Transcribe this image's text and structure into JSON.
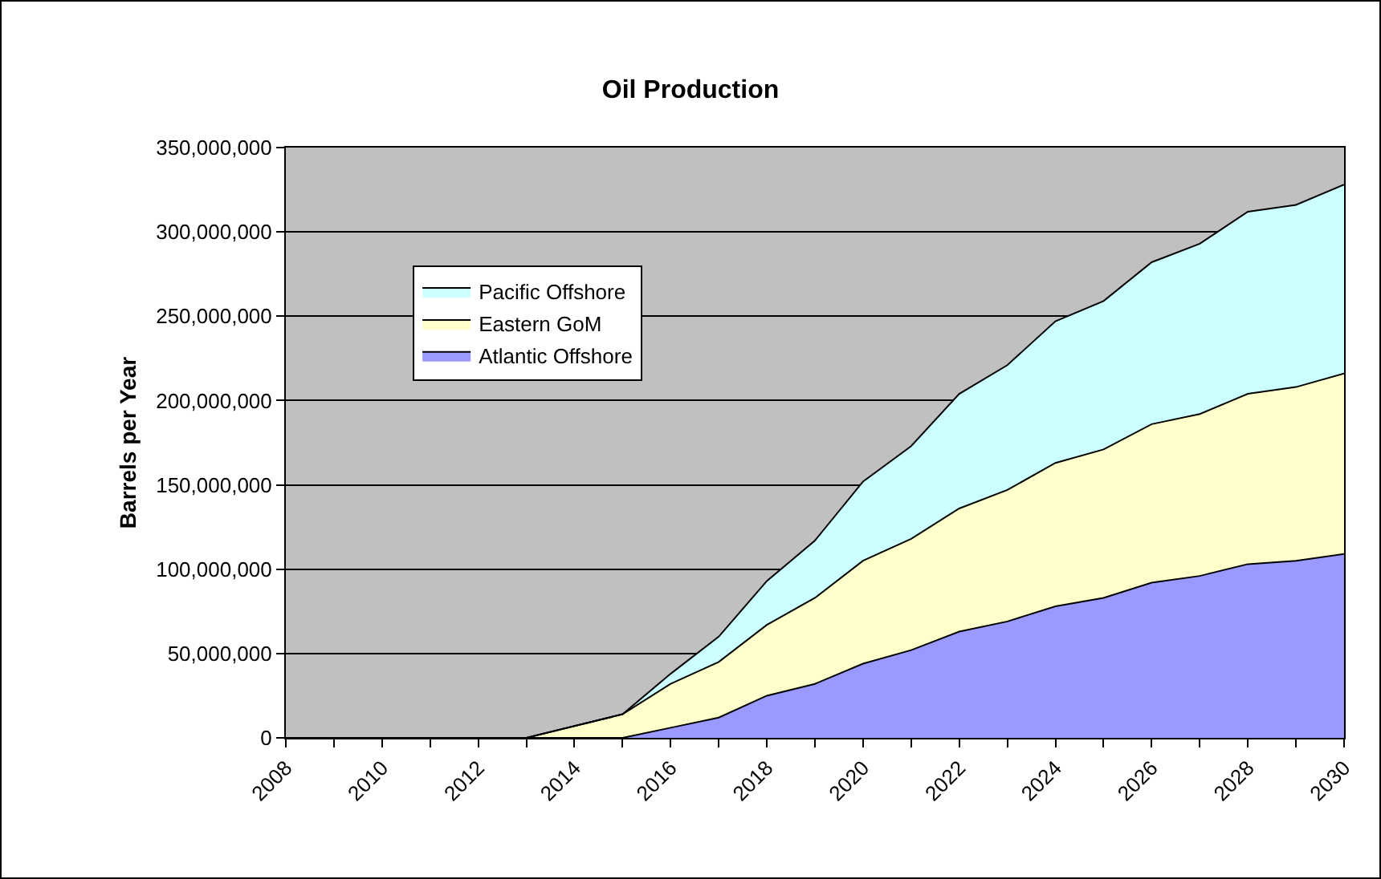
{
  "chart_data": {
    "type": "area",
    "title": "Oil Production",
    "ylabel": "Barrels per Year",
    "stacked": true,
    "x": [
      2008,
      2009,
      2010,
      2011,
      2012,
      2013,
      2014,
      2015,
      2016,
      2017,
      2018,
      2019,
      2020,
      2021,
      2022,
      2023,
      2024,
      2025,
      2026,
      2027,
      2028,
      2029,
      2030
    ],
    "series": [
      {
        "name": "Atlantic Offshore",
        "color": "#9999ff",
        "values": [
          0,
          0,
          0,
          0,
          0,
          0,
          0,
          0,
          6000000,
          12000000,
          25000000,
          32000000,
          44000000,
          52000000,
          63000000,
          69000000,
          78000000,
          83000000,
          92000000,
          96000000,
          103000000,
          105000000,
          109000000
        ]
      },
      {
        "name": "Eastern GoM",
        "color": "#ffffcc",
        "values": [
          0,
          0,
          0,
          0,
          0,
          0,
          7000000,
          14000000,
          26000000,
          33000000,
          42000000,
          51000000,
          61000000,
          66000000,
          73000000,
          78000000,
          85000000,
          88000000,
          94000000,
          96000000,
          101000000,
          103000000,
          107000000
        ]
      },
      {
        "name": "Pacific Offshore",
        "color": "#ccffff",
        "values": [
          0,
          0,
          0,
          0,
          0,
          0,
          0,
          0,
          6000000,
          15000000,
          26000000,
          34000000,
          47000000,
          55000000,
          68000000,
          74000000,
          84000000,
          88000000,
          96000000,
          101000000,
          108000000,
          108000000,
          112000000
        ]
      }
    ],
    "xlim": [
      2008,
      2030
    ],
    "xticks": [
      2008,
      {
        "value": 2009,
        "label": null
      },
      2010,
      {
        "value": 2011,
        "label": null
      },
      2012,
      {
        "value": 2013,
        "label": null
      },
      2014,
      {
        "value": 2015,
        "label": null
      },
      2016,
      {
        "value": 2017,
        "label": null
      },
      2018,
      {
        "value": 2019,
        "label": null
      },
      2020,
      {
        "value": 2021,
        "label": null
      },
      2022,
      {
        "value": 2023,
        "label": null
      },
      2024,
      {
        "value": 2025,
        "label": null
      },
      2026,
      {
        "value": 2027,
        "label": null
      },
      2028,
      {
        "value": 2029,
        "label": null
      },
      2030
    ],
    "ylim": [
      0,
      350000000
    ],
    "yticks": [
      {
        "value": 0,
        "label": "0"
      },
      {
        "value": 50000000,
        "label": "50,000,000"
      },
      {
        "value": 100000000,
        "label": "100,000,000"
      },
      {
        "value": 150000000,
        "label": "150,000,000"
      },
      {
        "value": 200000000,
        "label": "200,000,000"
      },
      {
        "value": 250000000,
        "label": "250,000,000"
      },
      {
        "value": 300000000,
        "label": "300,000,000"
      },
      {
        "value": 350000000,
        "label": "350,000,000"
      }
    ],
    "grid": "y",
    "legend": "top left",
    "line_style": "solid",
    "marker": "none"
  }
}
